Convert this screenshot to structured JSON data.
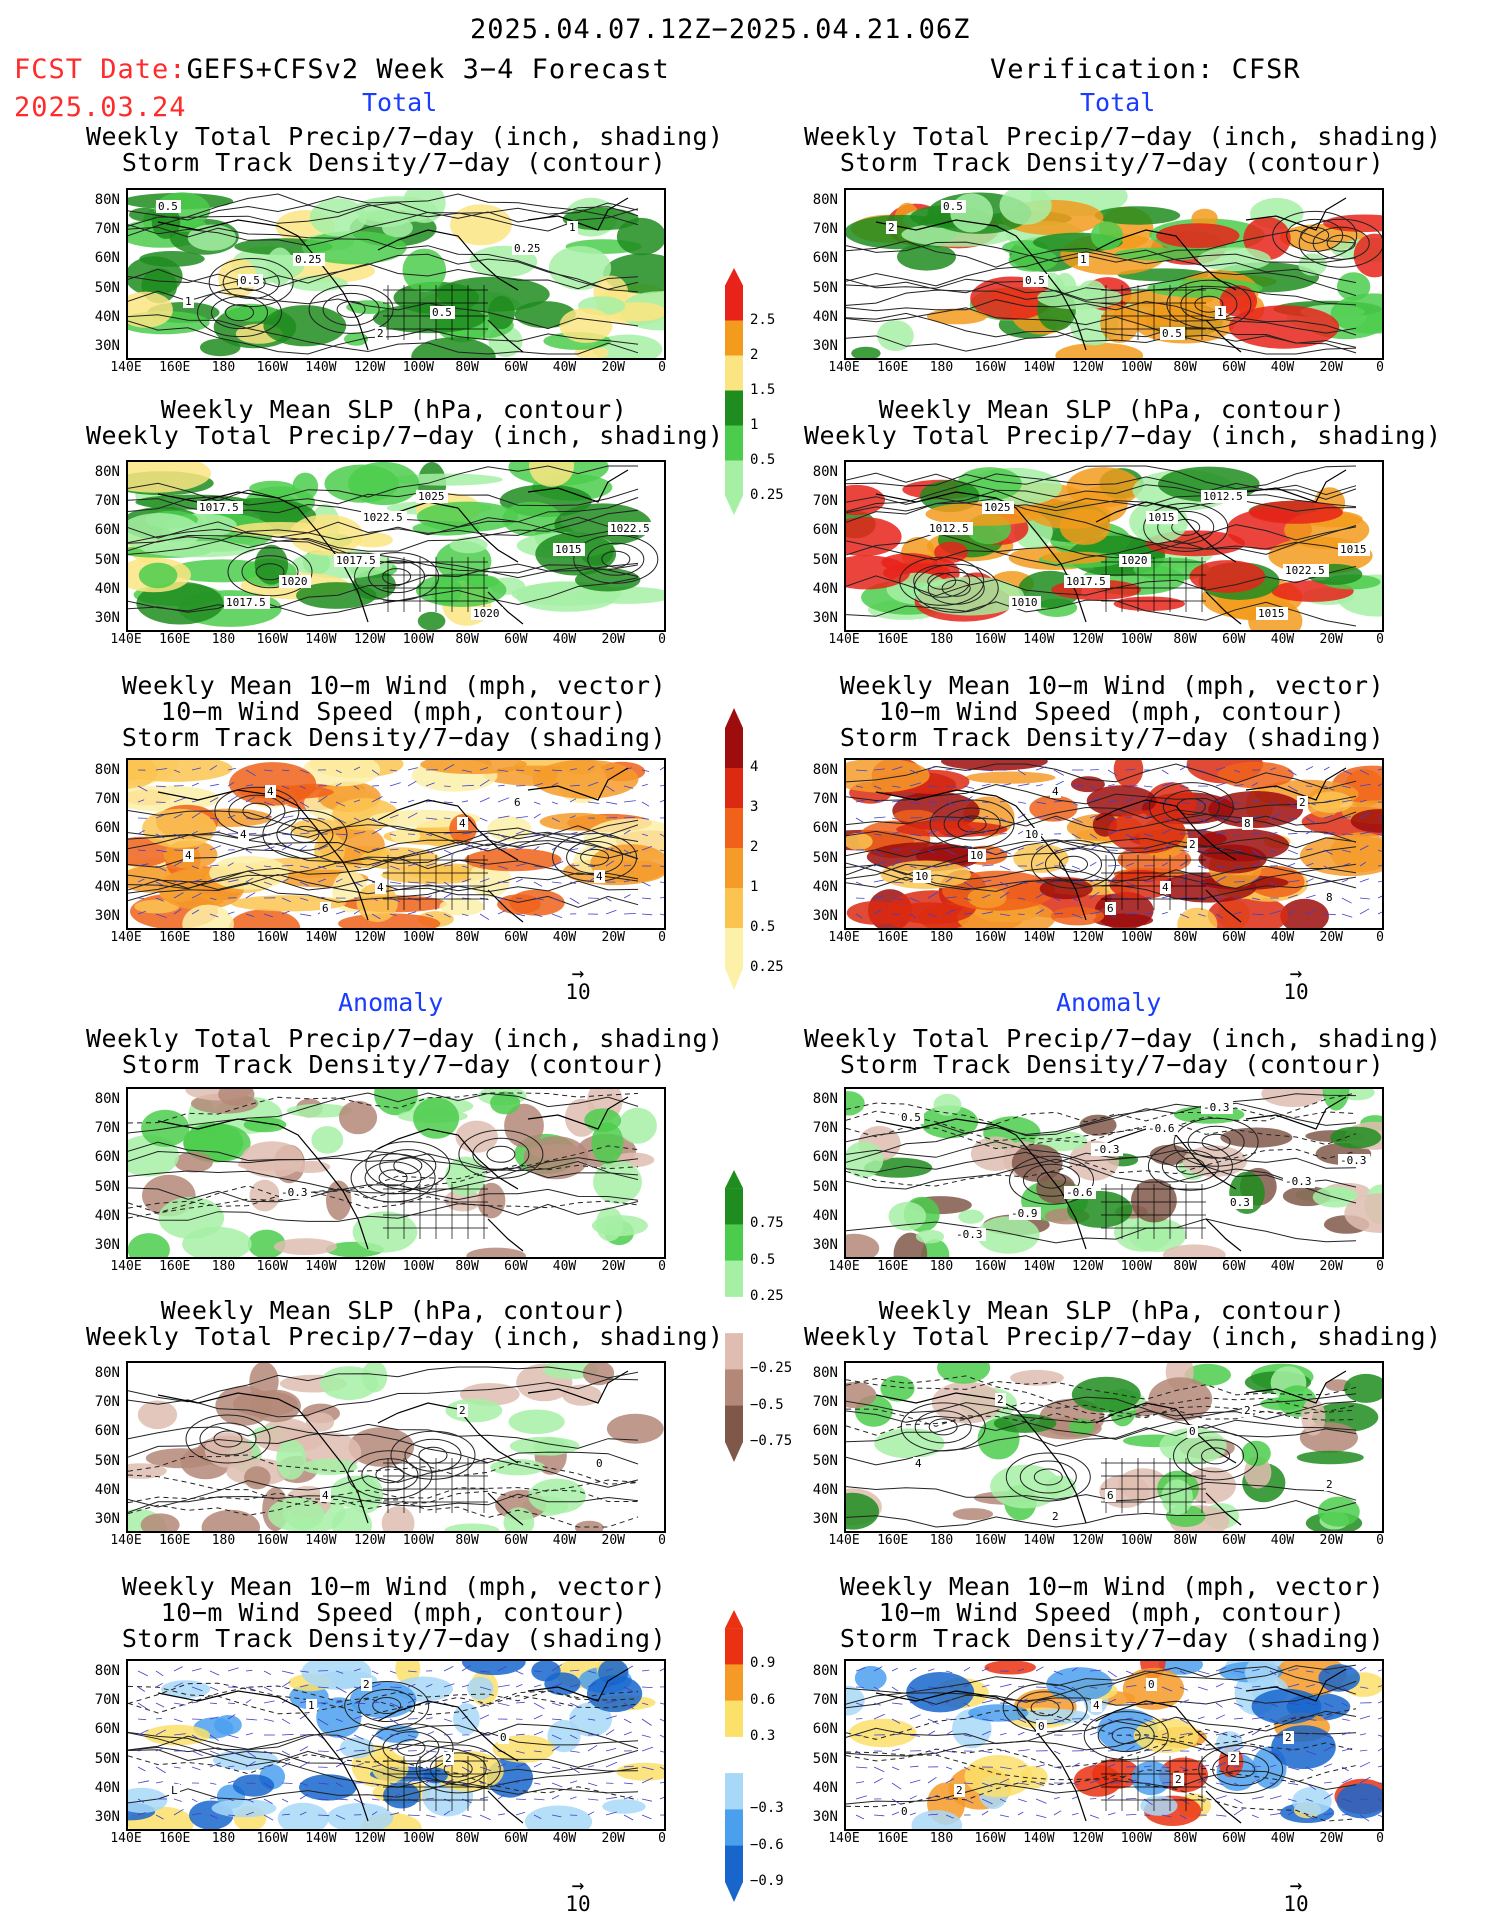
{
  "header": {
    "date_range": "2025.04.07.12Z−2025.04.21.06Z",
    "fcst_label": "FCST Date:",
    "fcst_model": "GEFS+CFSv2 Week 3−4 Forecast",
    "fcst_date": "2025.03.24",
    "verification": "Verification: CFSR"
  },
  "sections": {
    "total": "Total",
    "anomaly": "Anomaly"
  },
  "titles": {
    "p1": [
      "Weekly Total Precip/7−day (inch, shading)",
      "Storm Track Density/7−day (contour)"
    ],
    "p2": [
      "Weekly Mean SLP (hPa, contour)",
      "Weekly Total Precip/7−day (inch, shading)"
    ],
    "p3": [
      "Weekly Mean 10−m Wind (mph, vector)",
      "10−m Wind Speed (mph, contour)",
      "Storm Track Density/7−day (shading)"
    ]
  },
  "axes": {
    "lat": [
      "80N",
      "70N",
      "60N",
      "50N",
      "40N",
      "30N"
    ],
    "lon": [
      "140E",
      "160E",
      "180",
      "160W",
      "140W",
      "120W",
      "100W",
      "80W",
      "60W",
      "40W",
      "20W",
      "0"
    ]
  },
  "colorbars": {
    "precip_total": {
      "labels": [
        "2.5",
        "2",
        "1.5",
        "1",
        "0.5",
        "0.25"
      ],
      "colors": [
        "#e8231a",
        "#f29b1c",
        "#fbe582",
        "#1e8c1e",
        "#4ccc4c",
        "#a6f0a6"
      ]
    },
    "storm_total": {
      "labels": [
        "4",
        "3",
        "2",
        "1",
        "0.5",
        "0.25"
      ],
      "colors": [
        "#9e0d0d",
        "#dc2a12",
        "#f0621a",
        "#f49b2a",
        "#fbc451",
        "#fdf0a8"
      ]
    },
    "precip_anom": {
      "labels": [
        "0.75",
        "0.5",
        "0.25",
        "−0.25",
        "−0.5",
        "−0.75"
      ],
      "colors": [
        "#1f8c1f",
        "#4ccc4c",
        "#a6f0a6",
        "#ffffff",
        "#dfbdb0",
        "#b48878",
        "#80584a"
      ]
    },
    "storm_anom": {
      "labels": [
        "0.9",
        "0.6",
        "0.3",
        "−0.3",
        "−0.6",
        "−0.9"
      ],
      "colors": [
        "#ea3112",
        "#f59a26",
        "#fbe06a",
        "#ffffff",
        "#a8d8f8",
        "#4ba0ee",
        "#1866cc"
      ]
    }
  },
  "maps": {
    "t1l": {
      "palette": [
        "#a6f0a6",
        "#4ccc4c",
        "#1e8c1e",
        "#fbe582"
      ],
      "contour_labels": [
        "0.5",
        "0.25",
        "0.5",
        "1",
        "0.5",
        "2",
        "0.25",
        "1"
      ]
    },
    "t1r": {
      "palette": [
        "#a6f0a6",
        "#4ccc4c",
        "#1e8c1e",
        "#f29b1c",
        "#e8231a"
      ],
      "contour_labels": [
        "0.5",
        "1",
        "1",
        "2",
        "0.5",
        "0.5"
      ]
    },
    "t2l": {
      "palette": [
        "#a6f0a6",
        "#4ccc4c",
        "#1e8c1e",
        "#fbe582"
      ],
      "contour_labels": [
        "1017.5",
        "1017.5",
        "1020",
        "1022.5",
        "1020",
        "1025",
        "1015",
        "1017.5",
        "1022.5"
      ]
    },
    "t2r": {
      "palette": [
        "#a6f0a6",
        "#4ccc4c",
        "#1e8c1e",
        "#f29b1c",
        "#e8231a"
      ],
      "contour_labels": [
        "1025",
        "1020",
        "1015",
        "1012.5",
        "1017.5",
        "1012.5",
        "1015",
        "1010",
        "1015",
        "1022.5"
      ]
    },
    "t3l": {
      "palette": [
        "#fdf0a8",
        "#fbc451",
        "#f49b2a",
        "#f0621a"
      ],
      "contour_labels": [
        "4",
        "4",
        "6",
        "4",
        "6",
        "4",
        "4",
        "4"
      ]
    },
    "t3r": {
      "palette": [
        "#fbc451",
        "#f49b2a",
        "#f0621a",
        "#dc2a12",
        "#9e0d0d"
      ],
      "contour_labels": [
        "10",
        "4",
        "2",
        "10",
        "6",
        "8",
        "10",
        "4",
        "2",
        "8"
      ]
    },
    "a1l": {
      "palette": [
        "#dfbdb0",
        "#b48878",
        "#a6f0a6",
        "#4ccc4c"
      ],
      "contour_labels": [
        "-0.3"
      ]
    },
    "a1r": {
      "palette": [
        "#dfbdb0",
        "#b48878",
        "#80584a",
        "#a6f0a6",
        "#4ccc4c",
        "#1f8c1f"
      ],
      "contour_labels": [
        "-0.6",
        "-0.3",
        "-0.3",
        "-0.9",
        "-0.6",
        "-0.3",
        "-0.3",
        "-0.3",
        "0.3",
        "0.5"
      ]
    },
    "a2l": {
      "palette": [
        "#dfbdb0",
        "#b48878",
        "#a6f0a6"
      ],
      "contour_labels": [
        "4",
        "2",
        "0"
      ]
    },
    "a2r": {
      "palette": [
        "#dfbdb0",
        "#b48878",
        "#a6f0a6",
        "#4ccc4c",
        "#1f8c1f"
      ],
      "contour_labels": [
        "6",
        "2",
        "4",
        "2",
        "0",
        "2",
        "2"
      ]
    },
    "a3l": {
      "palette": [
        "#fbe06a",
        "#a8d8f8",
        "#4ba0ee",
        "#1866cc"
      ],
      "contour_labels": [
        "2",
        "0",
        "L",
        "1",
        "2"
      ]
    },
    "a3r": {
      "palette": [
        "#ea3112",
        "#f59a26",
        "#fbe06a",
        "#a8d8f8",
        "#4ba0ee",
        "#1866cc"
      ],
      "contour_labels": [
        "0",
        "2",
        "2",
        "4",
        "2",
        "0",
        "0",
        "2"
      ]
    }
  },
  "vector_reference": "10"
}
